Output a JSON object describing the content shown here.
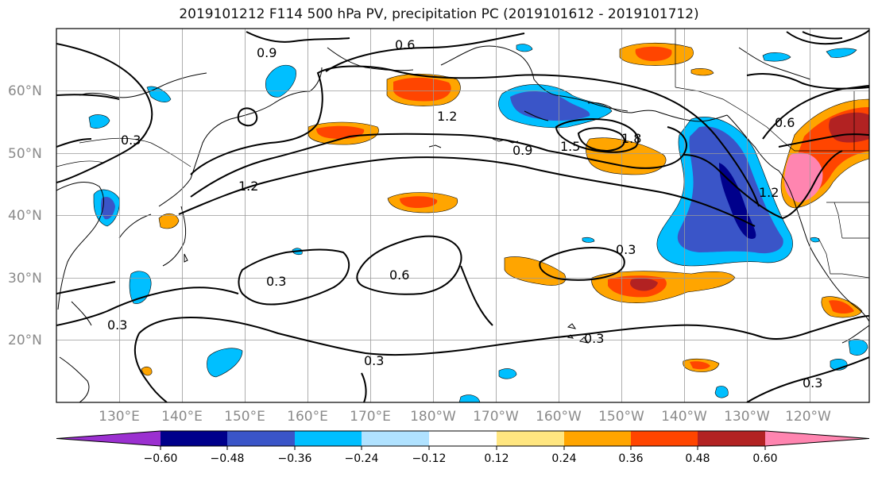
{
  "title": "2019101212 F114 500 hPa PV, precipitation PC (2019101612 - 2019101712)",
  "lat_labels": [
    "60°N",
    "50°N",
    "40°N",
    "30°N",
    "20°N"
  ],
  "lon_labels": [
    "130°E",
    "140°E",
    "150°E",
    "160°E",
    "170°E",
    "180°W",
    "170°W",
    "160°W",
    "150°W",
    "140°W",
    "130°W",
    "120°W"
  ],
  "contour_labels": [
    "0.9",
    "0.6",
    "1.2",
    "1.8",
    "1.5",
    "0.9",
    "0.6",
    "0.3",
    "1.2",
    "0.6",
    "0.3",
    "0.3",
    "0.3",
    "0.3",
    "0.3",
    "1.2",
    "0.3"
  ],
  "colorbar": {
    "ticks": [
      "−0.60",
      "−0.48",
      "−0.36",
      "−0.24",
      "−0.12",
      "0.12",
      "0.24",
      "0.36",
      "0.48",
      "0.60"
    ],
    "colors": [
      "#9b30d0",
      "#00008b",
      "#3a55c8",
      "#00bfff",
      "#b0e2ff",
      "#ffffff",
      "#ffe680",
      "#ffa500",
      "#ff4500",
      "#b22222",
      "#ff85b0",
      "#ff85b0"
    ]
  }
}
